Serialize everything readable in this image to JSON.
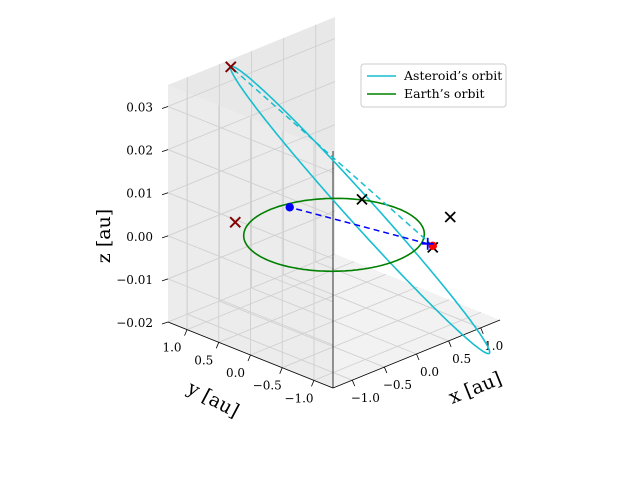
{
  "chart_data": {
    "type": "line",
    "projection": "3d",
    "xlabel": "$x$ [au]",
    "ylabel": "$y$ [au]",
    "zlabel": "$z$ [au]",
    "xlabel_text": "x [au]",
    "ylabel_text": "y [au]",
    "zlabel_text": "z [au]",
    "xlim": [
      -1.3,
      1.3
    ],
    "ylim": [
      -1.3,
      1.3
    ],
    "zlim": [
      -0.02,
      0.035
    ],
    "xticks": [
      "−1.0",
      "−0.5",
      "0.0",
      "0.5",
      "1.0"
    ],
    "yticks": [
      "1.0",
      "0.5",
      "0.0",
      "−0.5",
      "−1.0"
    ],
    "zticks": [
      "−0.02",
      "−0.01",
      "0.00",
      "0.01",
      "0.02",
      "0.03"
    ],
    "grid": true,
    "legend_position": "upper-right",
    "series": [
      {
        "name": "Asteroid's orbit",
        "label": "Asteroid’s orbit",
        "color": "#17becf",
        "kind": "ellipse",
        "center": [
          0.14,
          -0.27,
          0.0065
        ],
        "u": [
          -0.69,
          1.34,
          0.0295
        ],
        "v": [
          -0.21,
          -0.1,
          -0.001
        ]
      },
      {
        "name": "Earth's orbit",
        "label": "Earth’s orbit",
        "color": "#008000",
        "kind": "circle",
        "radius": 1.0,
        "z": 0.0
      }
    ],
    "markers": [
      {
        "name": "cross-1",
        "symbol": "x",
        "color": "#000000",
        "x": -0.52,
        "y": 1.03,
        "z": 0.0
      },
      {
        "name": "cross-2",
        "symbol": "x",
        "color": "#000000",
        "x": 0.52,
        "y": -1.03,
        "z": 0.0
      },
      {
        "name": "cross-3",
        "symbol": "x",
        "color": "#000000",
        "x": 0.9,
        "y": 0.47,
        "z": 0.0
      },
      {
        "name": "cross-4",
        "symbol": "x",
        "color": "#000000",
        "x": -0.55,
        "y": 1.07,
        "z": 0.036
      },
      {
        "name": "cross-5",
        "symbol": "x",
        "color": "#000000",
        "x": 0.95,
        "y": -0.87,
        "z": 0.0035
      },
      {
        "name": "cross-red-1",
        "symbol": "x",
        "color": "#8b0000",
        "x": -0.55,
        "y": 1.07,
        "z": 0.036
      },
      {
        "name": "cross-red-2",
        "symbol": "x",
        "color": "#8b0000",
        "x": -0.52,
        "y": 1.03,
        "z": 0.0
      },
      {
        "name": "blue-point",
        "symbol": "dot",
        "color": "#0000ff",
        "x": 0.19,
        "y": 0.89,
        "z": 0.0
      },
      {
        "name": "red-point",
        "symbol": "dot",
        "color": "#ff0000",
        "x": 0.55,
        "y": -1.0,
        "z": 0.0
      },
      {
        "name": "blue-plus",
        "symbol": "+",
        "color": "#0000ff",
        "x": 0.55,
        "y": -0.92,
        "z": 0.0
      }
    ],
    "dashed_segments": [
      {
        "name": "cyan-line-of-nodes",
        "color": "#17becf",
        "from": [
          0.55,
          -1.0,
          0.0
        ],
        "to": [
          -0.55,
          1.07,
          0.036
        ]
      },
      {
        "name": "blue-dashed-line",
        "color": "#0000ff",
        "from": [
          0.55,
          -0.92,
          0.0
        ],
        "to": [
          0.19,
          0.89,
          0.0
        ]
      }
    ]
  }
}
